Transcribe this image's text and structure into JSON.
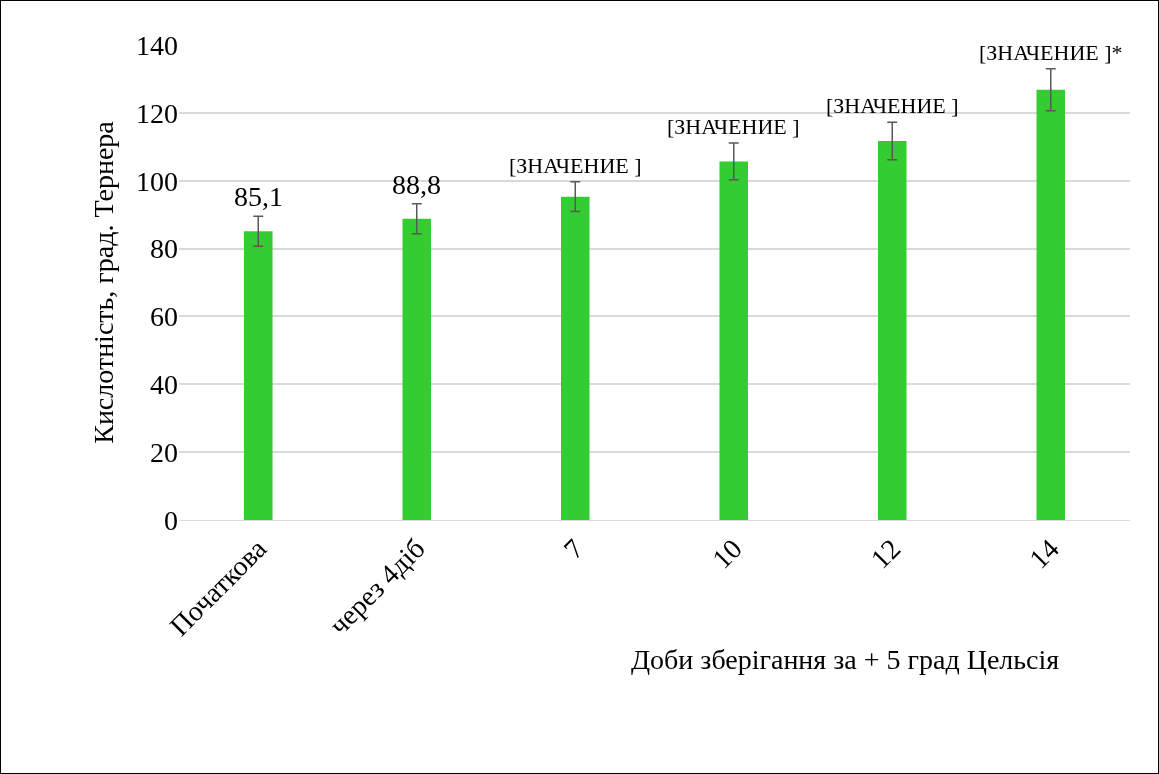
{
  "chart_data": {
    "type": "bar",
    "xlabel": "Доби зберігання за + 5 град Цельсія",
    "ylabel": "Кислотність, град. Тернера",
    "categories": [
      "Початкова",
      "через 4діб",
      "7",
      "10",
      "12",
      "14"
    ],
    "values": [
      85.1,
      88.8,
      95.3,
      105.7,
      111.7,
      126.8
    ],
    "errors": [
      4.4,
      4.4,
      4.4,
      5.4,
      5.5,
      6.2
    ],
    "value_labels": [
      "85,1",
      "88,8",
      "[ЗНАЧЕНИЕ ]",
      "[ЗНАЧЕНИЕ ]",
      "[ЗНАЧЕНИЕ ]",
      "[ЗНАЧЕНИЕ ]*"
    ],
    "color": "#33cc33",
    "ylim": [
      0,
      140
    ],
    "yticks": [
      0,
      20,
      40,
      60,
      80,
      100,
      120,
      140
    ],
    "grid": "y",
    "legend": false
  }
}
